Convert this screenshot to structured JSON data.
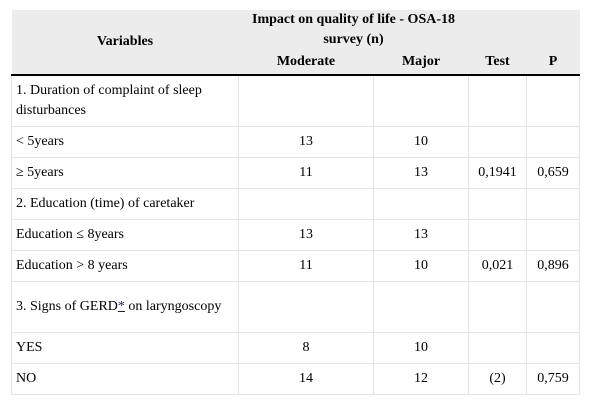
{
  "header": {
    "variables": "Variables",
    "group": "Impact on quality of life - OSA-18 survey (n)",
    "moderate": "Moderate",
    "major": "Major",
    "test": "Test",
    "p": "P"
  },
  "rows": [
    {
      "label": "1. Duration of complaint of sleep disturbances",
      "moderate": "",
      "major": "",
      "test": "",
      "p": ""
    },
    {
      "label": "< 5years",
      "moderate": "13",
      "major": "10",
      "test": "",
      "p": ""
    },
    {
      "label": "≥ 5years",
      "moderate": "11",
      "major": "13",
      "test": "0,1941",
      "p": "0,659"
    },
    {
      "label": "2. Education (time) of caretaker",
      "moderate": "",
      "major": "",
      "test": "",
      "p": ""
    },
    {
      "label": "Education ≤ 8years",
      "moderate": "13",
      "major": "13",
      "test": "",
      "p": ""
    },
    {
      "label": "Education > 8 years",
      "moderate": "11",
      "major": "10",
      "test": "0,021",
      "p": "0,896"
    },
    {
      "label_pre": "3. Signs of GERD",
      "label_link": "*",
      "label_post": " on laryngoscopy",
      "moderate": "",
      "major": "",
      "test": "",
      "p": ""
    },
    {
      "label": "YES",
      "moderate": "8",
      "major": "10",
      "test": "",
      "p": ""
    },
    {
      "label": "NO",
      "moderate": "14",
      "major": "12",
      "test": "(2)",
      "p": "0,759"
    }
  ]
}
